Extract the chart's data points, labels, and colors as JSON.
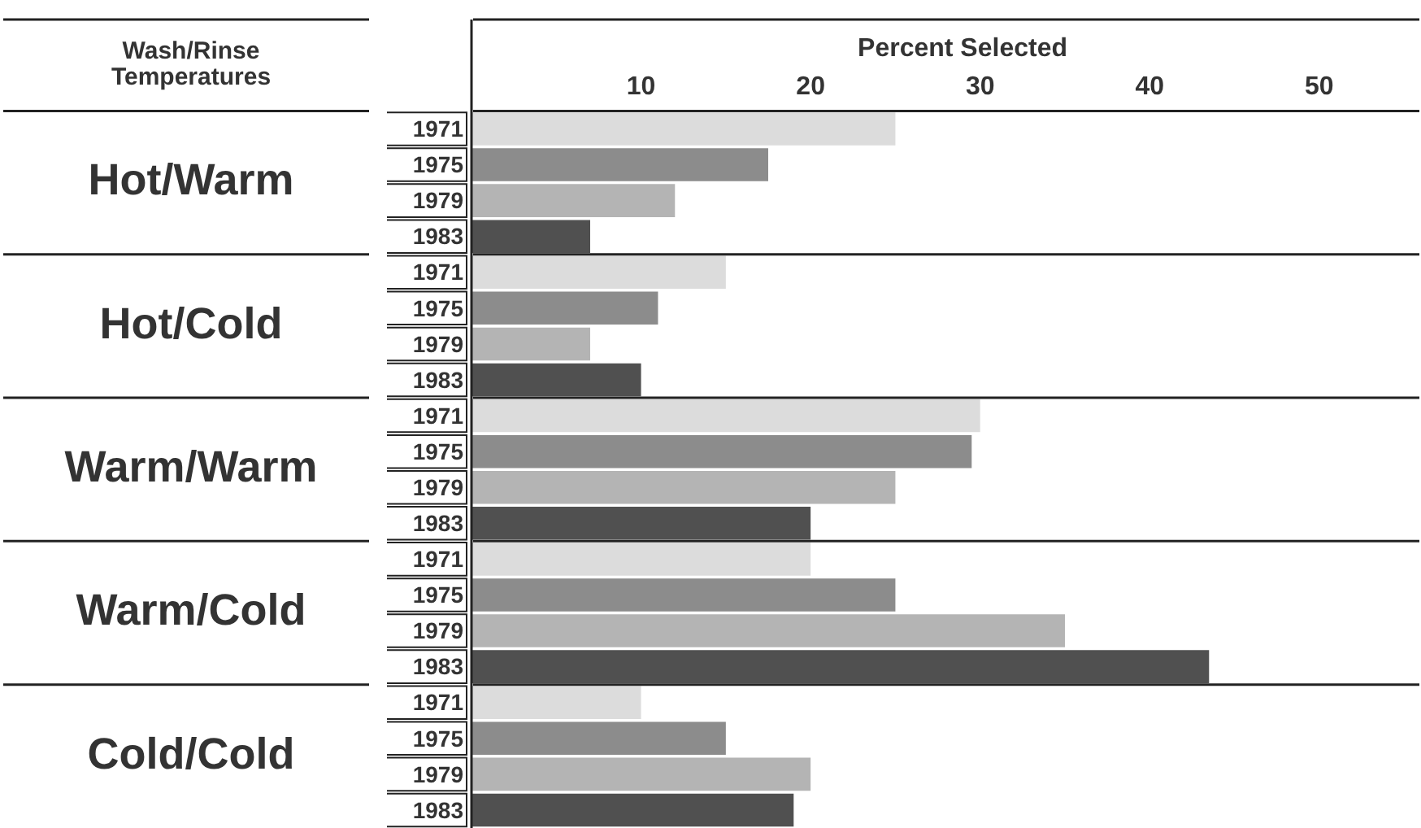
{
  "chart_data": {
    "type": "bar",
    "orientation": "horizontal",
    "xlabel": "Percent Selected",
    "ylabel": "Wash/Rinse Temperatures",
    "categories": [
      "Hot/Warm",
      "Hot/Cold",
      "Warm/Warm",
      "Warm/Cold",
      "Cold/Cold"
    ],
    "series": [
      {
        "name": "1971",
        "color": "#dcdcdc",
        "values": [
          25,
          15,
          30,
          20,
          10
        ]
      },
      {
        "name": "1975",
        "color": "#8c8c8c",
        "values": [
          17.5,
          11,
          29.5,
          25,
          15
        ]
      },
      {
        "name": "1979",
        "color": "#b4b4b4",
        "values": [
          12,
          7,
          25,
          35,
          20
        ]
      },
      {
        "name": "1983",
        "color": "#505050",
        "values": [
          7,
          10,
          20,
          43.5,
          19
        ]
      }
    ],
    "xlim": [
      0,
      56
    ],
    "xticks": [
      10,
      20,
      30,
      40,
      50
    ],
    "grid": false,
    "legend": false
  }
}
